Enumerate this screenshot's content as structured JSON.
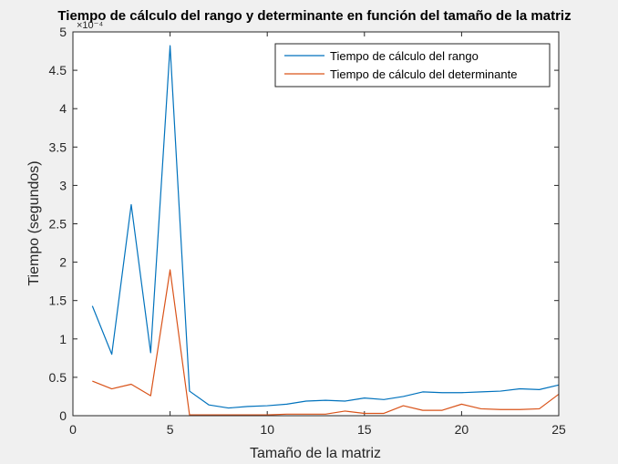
{
  "chart_data": {
    "type": "line",
    "title": "Tiempo de cálculo del rango y determinante en función del tamaño de la matriz",
    "xlabel": "Tamaño de la matriz",
    "ylabel": "Tiempo (segundos)",
    "y_exponent_label": "×10⁻⁴",
    "xlim": [
      0,
      25
    ],
    "ylim": [
      0,
      5
    ],
    "x_ticks": [
      0,
      5,
      10,
      15,
      20,
      25
    ],
    "y_ticks": [
      0,
      0.5,
      1,
      1.5,
      2,
      2.5,
      3,
      3.5,
      4,
      4.5,
      5
    ],
    "grid": false,
    "legend_position": "top-right",
    "x": [
      1,
      2,
      3,
      4,
      5,
      6,
      7,
      8,
      9,
      10,
      11,
      12,
      13,
      14,
      15,
      16,
      17,
      18,
      19,
      20,
      21,
      22,
      23,
      24,
      25
    ],
    "series": [
      {
        "name": "Tiempo de cálculo del rango",
        "color": "#0072BD",
        "values": [
          1.43,
          0.8,
          2.75,
          0.82,
          4.82,
          0.32,
          0.14,
          0.1,
          0.12,
          0.13,
          0.15,
          0.19,
          0.2,
          0.19,
          0.23,
          0.21,
          0.25,
          0.31,
          0.3,
          0.3,
          0.31,
          0.32,
          0.35,
          0.34,
          0.4
        ]
      },
      {
        "name": "Tiempo de cálculo del determinante",
        "color": "#D95319",
        "values": [
          0.45,
          0.35,
          0.41,
          0.26,
          1.9,
          0.01,
          0.01,
          0.01,
          0.01,
          0.01,
          0.02,
          0.02,
          0.02,
          0.06,
          0.03,
          0.03,
          0.13,
          0.07,
          0.07,
          0.15,
          0.09,
          0.08,
          0.08,
          0.09,
          0.28
        ]
      }
    ]
  }
}
